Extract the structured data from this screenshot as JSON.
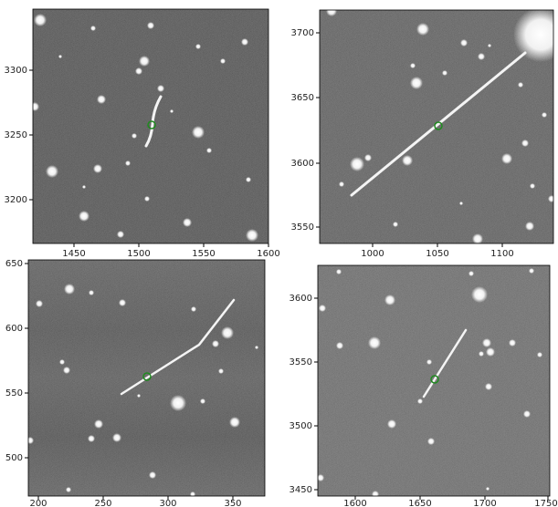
{
  "panels": [
    {
      "name": "panel-top-left",
      "x_ticks": [
        "1450",
        "1500",
        "1550",
        "1600"
      ],
      "y_ticks": [
        "3300",
        "3250",
        "3200"
      ]
    },
    {
      "name": "panel-top-right",
      "x_ticks": [
        "1000",
        "1050",
        "1100"
      ],
      "y_ticks": [
        "3700",
        "3650",
        "3600",
        "3550"
      ]
    },
    {
      "name": "panel-bottom-left",
      "x_ticks": [
        "200",
        "250",
        "300",
        "350"
      ],
      "y_ticks": [
        "650",
        "600",
        "550",
        "500"
      ]
    },
    {
      "name": "panel-bottom-right",
      "x_ticks": [
        "1600",
        "1650",
        "1700",
        "1750"
      ],
      "y_ticks": [
        "3600",
        "3550",
        "3500",
        "3450"
      ]
    }
  ],
  "colors": {
    "marker": "#1f8a1f",
    "streak": "#f4f4f4",
    "star": "#ffffff"
  }
}
